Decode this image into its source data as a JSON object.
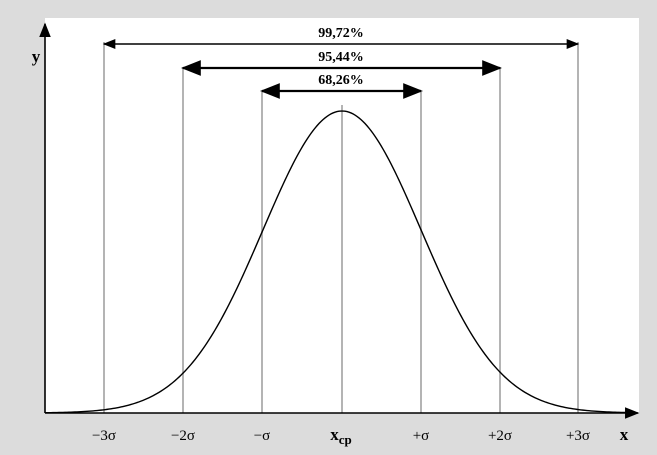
{
  "diagram": {
    "y_axis_label": "y",
    "x_axis_label": "x",
    "mean_label": {
      "main": "x",
      "sub": "cp"
    },
    "tick_labels": [
      "−3σ",
      "−2σ",
      "−σ",
      "+σ",
      "+2σ",
      "+3σ"
    ],
    "intervals": [
      {
        "label": "99,72%",
        "sigma": 3
      },
      {
        "label": "95,44%",
        "sigma": 2
      },
      {
        "label": "68,26%",
        "sigma": 1
      }
    ]
  },
  "colors": {
    "background": "#dcdcdc",
    "plot_area": "#ffffff",
    "curve": "#000000",
    "guide_lines": "#b4b4b4"
  }
}
